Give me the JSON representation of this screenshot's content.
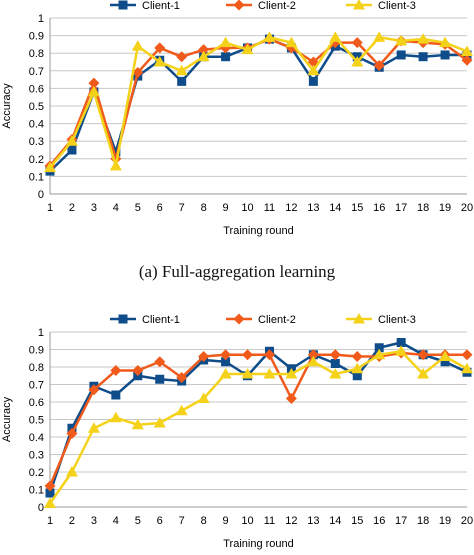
{
  "caption_a": "(a) Full-aggregation learning",
  "chart_data": [
    {
      "type": "line",
      "title": "",
      "xlabel": "Training round",
      "ylabel": "Accuracy",
      "x": [
        1,
        2,
        3,
        4,
        5,
        6,
        7,
        8,
        9,
        10,
        11,
        12,
        13,
        14,
        15,
        16,
        17,
        18,
        19,
        20
      ],
      "xlim": [
        1,
        20
      ],
      "ylim": [
        0,
        1
      ],
      "yticks": [
        0,
        0.1,
        0.2,
        0.3,
        0.4,
        0.5,
        0.6,
        0.7,
        0.8,
        0.9,
        1
      ],
      "grid": true,
      "legend": "top",
      "series": [
        {
          "name": "Client-1",
          "color": "#0f4c8a",
          "marker": "square",
          "values": [
            0.13,
            0.25,
            0.58,
            0.24,
            0.67,
            0.76,
            0.64,
            0.78,
            0.78,
            0.83,
            0.88,
            0.83,
            0.64,
            0.84,
            0.78,
            0.72,
            0.79,
            0.78,
            0.79,
            0.79
          ]
        },
        {
          "name": "Client-2",
          "color": "#f05a1a",
          "marker": "diamond",
          "values": [
            0.16,
            0.31,
            0.63,
            0.2,
            0.69,
            0.83,
            0.78,
            0.82,
            0.83,
            0.83,
            0.88,
            0.83,
            0.75,
            0.86,
            0.86,
            0.73,
            0.87,
            0.86,
            0.85,
            0.76
          ]
        },
        {
          "name": "Client-3",
          "color": "#f5d21a",
          "marker": "triangle",
          "values": [
            0.15,
            0.3,
            0.58,
            0.16,
            0.84,
            0.75,
            0.7,
            0.78,
            0.86,
            0.82,
            0.89,
            0.86,
            0.7,
            0.89,
            0.75,
            0.89,
            0.87,
            0.88,
            0.86,
            0.81
          ]
        }
      ]
    },
    {
      "type": "line",
      "title": "",
      "xlabel": "Training round",
      "ylabel": "Accuracy",
      "x": [
        1,
        2,
        3,
        4,
        5,
        6,
        7,
        8,
        9,
        10,
        11,
        12,
        13,
        14,
        15,
        16,
        17,
        18,
        19,
        20
      ],
      "xlim": [
        1,
        20
      ],
      "ylim": [
        0,
        1
      ],
      "yticks": [
        0,
        0.1,
        0.2,
        0.3,
        0.4,
        0.5,
        0.6,
        0.7,
        0.8,
        0.9,
        1
      ],
      "grid": true,
      "legend": "top",
      "series": [
        {
          "name": "Client-1",
          "color": "#0f4c8a",
          "marker": "square",
          "values": [
            0.08,
            0.45,
            0.69,
            0.64,
            0.75,
            0.73,
            0.72,
            0.84,
            0.83,
            0.75,
            0.89,
            0.79,
            0.87,
            0.82,
            0.75,
            0.91,
            0.94,
            0.87,
            0.83,
            0.77
          ]
        },
        {
          "name": "Client-2",
          "color": "#f05a1a",
          "marker": "diamond",
          "values": [
            0.12,
            0.42,
            0.67,
            0.78,
            0.78,
            0.83,
            0.74,
            0.86,
            0.87,
            0.87,
            0.87,
            0.62,
            0.87,
            0.87,
            0.86,
            0.86,
            0.88,
            0.87,
            0.87,
            0.87
          ]
        },
        {
          "name": "Client-3",
          "color": "#f5d21a",
          "marker": "triangle",
          "values": [
            0.02,
            0.2,
            0.45,
            0.51,
            0.47,
            0.48,
            0.55,
            0.62,
            0.76,
            0.76,
            0.76,
            0.76,
            0.83,
            0.76,
            0.79,
            0.87,
            0.89,
            0.76,
            0.86,
            0.79
          ]
        }
      ]
    }
  ]
}
